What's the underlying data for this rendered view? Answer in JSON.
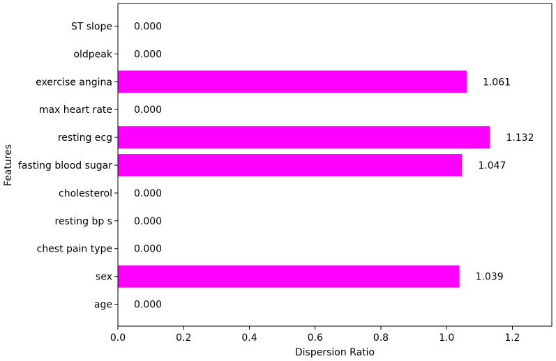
{
  "chart_data": {
    "type": "bar",
    "orientation": "horizontal",
    "categories": [
      "age",
      "sex",
      "chest pain type",
      "resting bp s",
      "cholesterol",
      "fasting blood sugar",
      "resting ecg",
      "max heart rate",
      "exercise angina",
      "oldpeak",
      "ST slope"
    ],
    "values": [
      0.0,
      1.039,
      0.0,
      0.0,
      0.0,
      1.047,
      1.132,
      0.0,
      1.061,
      0.0,
      0.0
    ],
    "value_labels": [
      "0.000",
      "1.039",
      "0.000",
      "0.000",
      "0.000",
      "1.047",
      "1.132",
      "0.000",
      "1.061",
      "0.000",
      "0.000"
    ],
    "xlabel": "Dispersion Ratio",
    "ylabel": "Features",
    "xlim": [
      0,
      1.32
    ],
    "xticks": [
      0.0,
      0.2,
      0.4,
      0.6,
      0.8,
      1.0,
      1.2
    ],
    "xtick_labels": [
      "0.0",
      "0.2",
      "0.4",
      "0.6",
      "0.8",
      "1.0",
      "1.2"
    ],
    "bar_color": "#ff00ff",
    "grid": false
  }
}
